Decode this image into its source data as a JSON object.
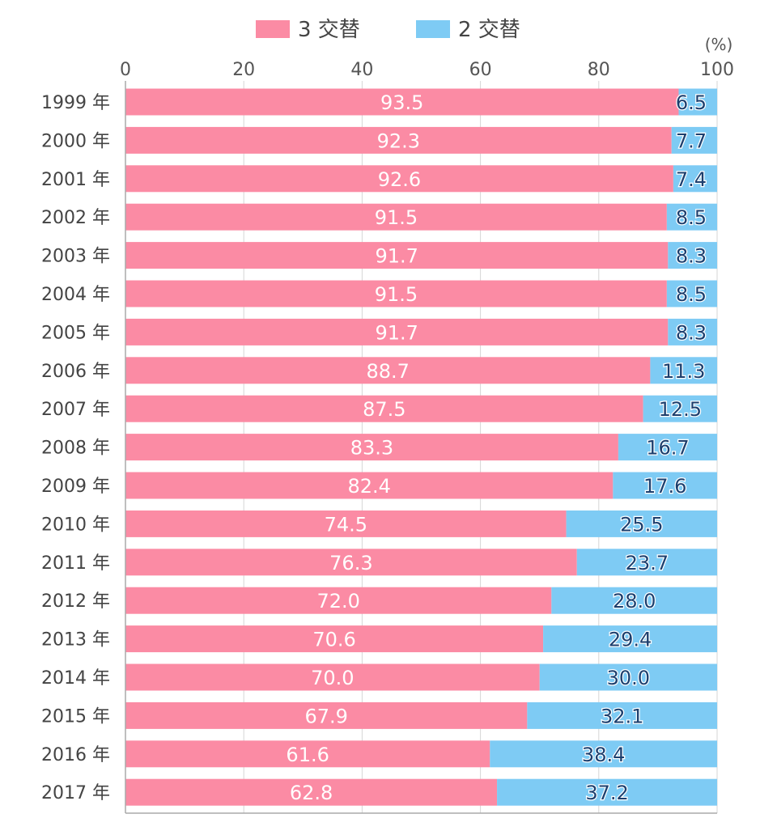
{
  "chart_data": {
    "type": "bar",
    "orientation": "horizontal",
    "stacked": true,
    "categories": [
      "1999 年",
      "2000 年",
      "2001 年",
      "2002 年",
      "2003 年",
      "2004 年",
      "2005 年",
      "2006 年",
      "2007 年",
      "2008 年",
      "2009 年",
      "2010 年",
      "2011 年",
      "2012 年",
      "2013 年",
      "2014 年",
      "2015 年",
      "2016 年",
      "2017 年"
    ],
    "series": [
      {
        "name": "3 交替",
        "color": "#fb8ba4",
        "values": [
          93.5,
          92.3,
          92.6,
          91.5,
          91.7,
          91.5,
          91.7,
          88.7,
          87.5,
          83.3,
          82.4,
          74.5,
          76.3,
          72.0,
          70.6,
          70.0,
          67.9,
          61.6,
          62.8
        ]
      },
      {
        "name": "2 交替",
        "color": "#7ecbf4",
        "values": [
          6.5,
          7.7,
          7.4,
          8.5,
          8.3,
          8.5,
          8.3,
          11.3,
          12.5,
          16.7,
          17.6,
          25.5,
          23.7,
          28.0,
          29.4,
          30.0,
          32.1,
          38.4,
          37.2
        ]
      }
    ],
    "labels": [
      [
        "93.5",
        "92.3",
        "92.6",
        "91.5",
        "91.7",
        "91.5",
        "91.7",
        "88.7",
        "87.5",
        "83.3",
        "82.4",
        "74.5",
        "76.3",
        "72.0",
        "70.6",
        "70.0",
        "67.9",
        "61.6",
        "62.8"
      ],
      [
        "6.5",
        "7.7",
        "7.4",
        "8.5",
        "8.3",
        "8.5",
        "8.3",
        "11.3",
        "12.5",
        "16.7",
        "17.6",
        "25.5",
        "23.7",
        "28.0",
        "29.4",
        "30.0",
        "32.1",
        "38.4",
        "37.2"
      ]
    ],
    "x_ticks": [
      "0",
      "20",
      "40",
      "60",
      "80",
      "100"
    ],
    "xlim": [
      0,
      100
    ],
    "unit_label": "(%)",
    "grid": true,
    "legend_position": "top"
  }
}
